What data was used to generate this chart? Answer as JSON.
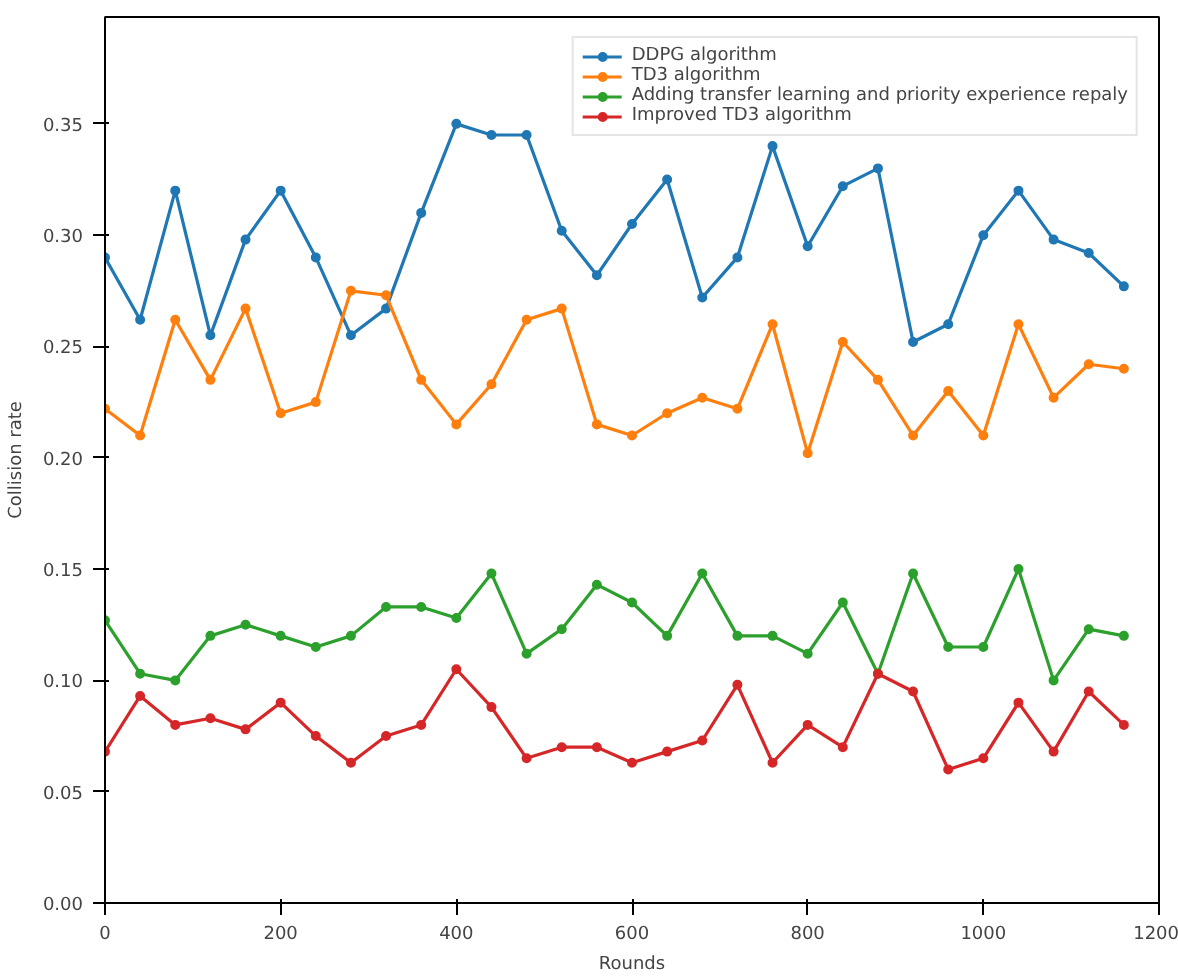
{
  "chart_data": {
    "type": "line",
    "xlabel": "Rounds",
    "ylabel": "Collision rate",
    "x": [
      0,
      40,
      80,
      120,
      160,
      200,
      240,
      280,
      320,
      360,
      400,
      440,
      480,
      520,
      560,
      600,
      640,
      680,
      720,
      760,
      800,
      840,
      880,
      920,
      960,
      1000,
      1040,
      1080,
      1120,
      1160
    ],
    "series": [
      {
        "name": "DDPG algorithm",
        "color": "#1f77b4",
        "values": [
          0.29,
          0.262,
          0.32,
          0.255,
          0.298,
          0.32,
          0.29,
          0.255,
          0.267,
          0.31,
          0.35,
          0.345,
          0.345,
          0.302,
          0.282,
          0.305,
          0.325,
          0.272,
          0.29,
          0.34,
          0.295,
          0.322,
          0.33,
          0.252,
          0.26,
          0.3,
          0.32,
          0.298,
          0.292,
          0.277
        ]
      },
      {
        "name": "TD3 algorithm",
        "color": "#ff7f0e",
        "values": [
          0.222,
          0.21,
          0.262,
          0.235,
          0.267,
          0.22,
          0.225,
          0.275,
          0.273,
          0.235,
          0.215,
          0.233,
          0.262,
          0.267,
          0.215,
          0.21,
          0.22,
          0.227,
          0.222,
          0.26,
          0.202,
          0.252,
          0.235,
          0.21,
          0.23,
          0.21,
          0.26,
          0.227,
          0.242,
          0.24
        ]
      },
      {
        "name": "Adding transfer learning and priority experience repaly",
        "color": "#2ca02c",
        "values": [
          0.127,
          0.103,
          0.1,
          0.12,
          0.125,
          0.12,
          0.115,
          0.12,
          0.133,
          0.133,
          0.128,
          0.148,
          0.112,
          0.123,
          0.143,
          0.135,
          0.12,
          0.148,
          0.12,
          0.12,
          0.112,
          0.135,
          0.103,
          0.148,
          0.115,
          0.115,
          0.15,
          0.1,
          0.123,
          0.12
        ]
      },
      {
        "name": "Improved TD3 algorithm",
        "color": "#d62728",
        "values": [
          0.068,
          0.093,
          0.08,
          0.083,
          0.078,
          0.09,
          0.075,
          0.063,
          0.075,
          0.08,
          0.105,
          0.088,
          0.065,
          0.07,
          0.07,
          0.063,
          0.068,
          0.073,
          0.098,
          0.063,
          0.08,
          0.07,
          0.103,
          0.095,
          0.06,
          0.065,
          0.09,
          0.068,
          0.095,
          0.08
        ]
      }
    ],
    "xlim": [
      0,
      1200
    ],
    "xticks": [
      0,
      200,
      400,
      600,
      800,
      1000,
      1200
    ],
    "ylim": [
      0,
      0.398
    ],
    "yticks": [
      {
        "value": 0,
        "label": "0.00"
      },
      {
        "value": 0.05,
        "label": "0.05"
      },
      {
        "value": 0.1,
        "label": "0.10"
      },
      {
        "value": 0.15,
        "label": "0.15"
      },
      {
        "value": 0.2,
        "label": "0.20"
      },
      {
        "value": 0.25,
        "label": "0.25"
      },
      {
        "value": 0.3,
        "label": "0.30"
      },
      {
        "value": 0.35,
        "label": "0.35"
      }
    ],
    "grid": false,
    "legend": "top right",
    "marker": "circle",
    "line_style": "solid"
  }
}
